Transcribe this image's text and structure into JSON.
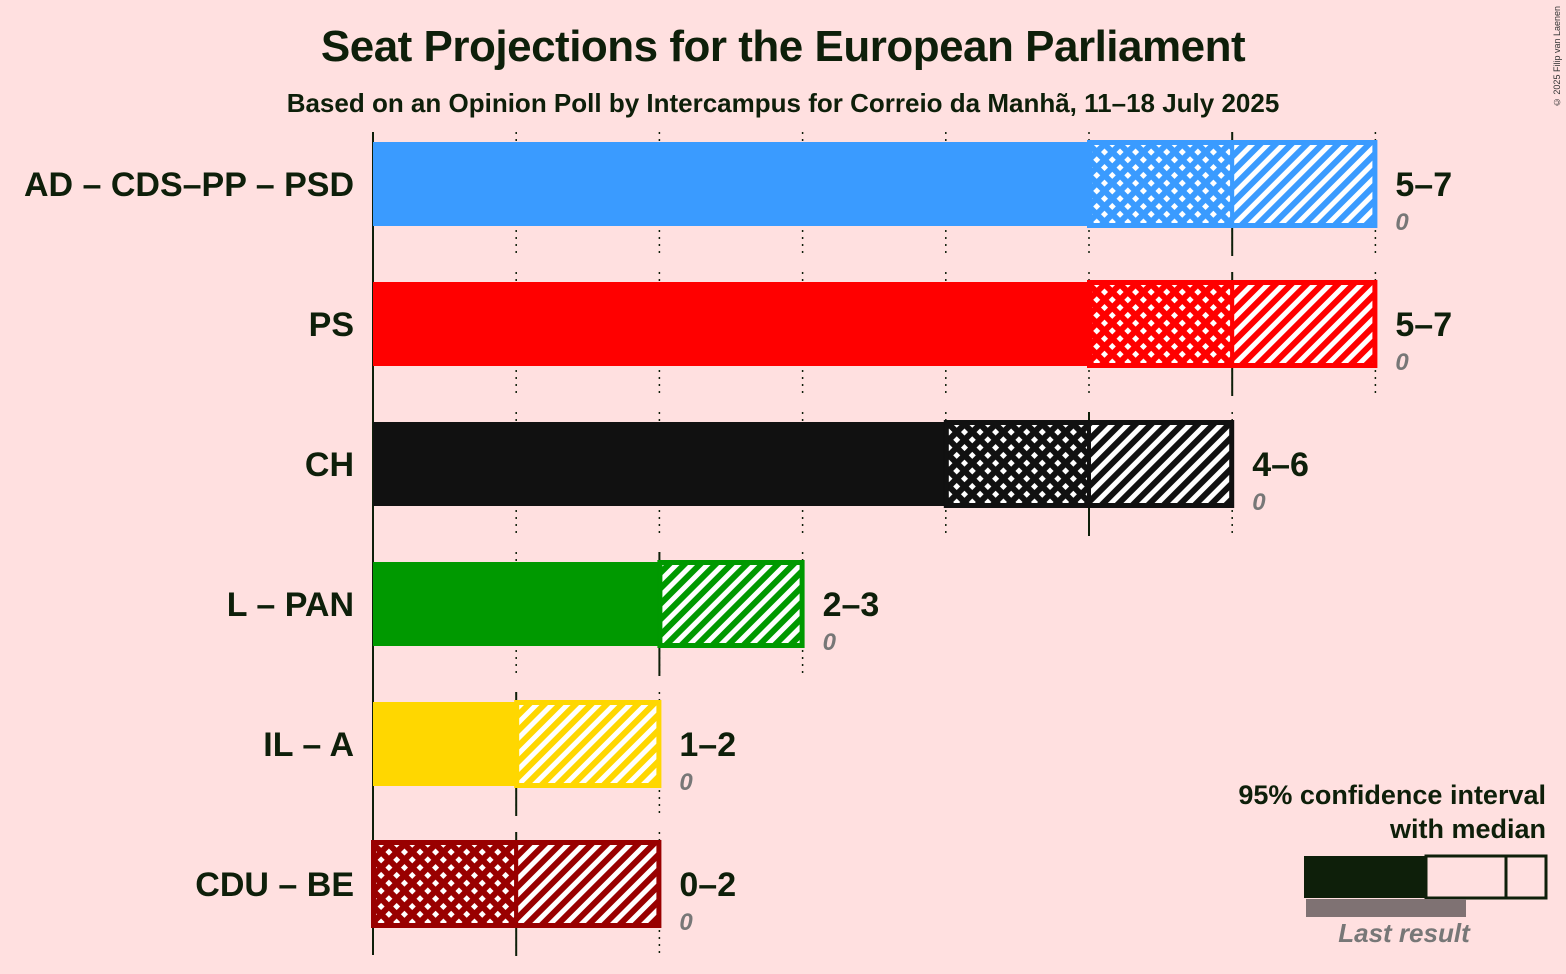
{
  "title": "Seat Projections for the European Parliament",
  "subtitle": "Based on an Opinion Poll by Intercampus for Correio da Manhã, 11–18 July 2025",
  "copyright": "© 2025 Filip van Laenen",
  "legend": {
    "title_line1": "95% confidence interval",
    "title_line2": "with median",
    "last_result": "Last result"
  },
  "chart_data": {
    "type": "bar",
    "orientation": "horizontal",
    "title": "Seat Projections for the European Parliament",
    "subtitle": "Based on an Opinion Poll by Intercampus for Correio da Manhã, 11–18 July 2025",
    "xlim": [
      0,
      7
    ],
    "grid": true,
    "legend_position": "bottom-right",
    "parties": [
      {
        "name": "AD – CDS–PP – PSD",
        "low": 5,
        "median": 6,
        "high": 7,
        "range_label": "5–7",
        "last_result": 0,
        "last_label": "0",
        "color": "#3A9BFF"
      },
      {
        "name": "PS",
        "low": 5,
        "median": 6,
        "high": 7,
        "range_label": "5–7",
        "last_result": 0,
        "last_label": "0",
        "color": "#FF0000"
      },
      {
        "name": "CH",
        "low": 4,
        "median": 5,
        "high": 6,
        "range_label": "4–6",
        "last_result": 0,
        "last_label": "0",
        "color": "#111111"
      },
      {
        "name": "L – PAN",
        "low": 2,
        "median": 2,
        "high": 3,
        "range_label": "2–3",
        "last_result": 0,
        "last_label": "0",
        "color": "#009900"
      },
      {
        "name": "IL – A",
        "low": 1,
        "median": 1,
        "high": 2,
        "range_label": "1–2",
        "last_result": 0,
        "last_label": "0",
        "color": "#FFD700"
      },
      {
        "name": "CDU – BE",
        "low": 0,
        "median": 1,
        "high": 2,
        "range_label": "0–2",
        "last_result": 0,
        "last_label": "0",
        "color": "#990000"
      }
    ]
  }
}
